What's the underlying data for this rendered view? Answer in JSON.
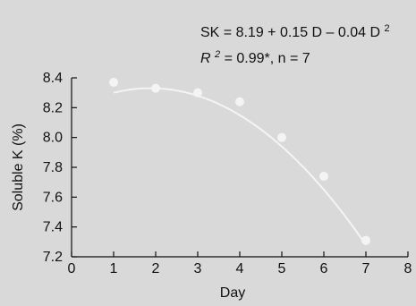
{
  "chart_data": {
    "type": "scatter",
    "xlabel": "Day",
    "ylabel": "Soluble K (%)",
    "xlim": [
      0,
      8
    ],
    "ylim": [
      7.2,
      8.4
    ],
    "x_ticks": [
      "0",
      "1",
      "2",
      "3",
      "4",
      "5",
      "6",
      "7",
      "8"
    ],
    "y_ticks": [
      "7.2",
      "7.4",
      "7.6",
      "7.8",
      "8.0",
      "8.2",
      "8.4"
    ],
    "points": {
      "x": [
        1,
        2,
        3,
        4,
        5,
        6,
        7
      ],
      "y": [
        8.37,
        8.33,
        8.3,
        8.24,
        8.0,
        7.74,
        7.31
      ]
    },
    "fit": {
      "type": "quadratic",
      "intercept": 8.19,
      "linear": 0.15,
      "quadratic": -0.04,
      "x_range": [
        1,
        7
      ]
    },
    "annotations": {
      "equation_main": "SK = 8.19 + 0.15 D – 0.04 D",
      "equation_sup": "2",
      "stat_r": "R",
      "stat_sup": "2",
      "stat_rest": " = 0.99*, n = 7"
    },
    "colors": {
      "background": "#d9d9d9",
      "marker": "#f4f4f4",
      "fit_line": "#f4f4f4",
      "axis": "#111111"
    }
  }
}
